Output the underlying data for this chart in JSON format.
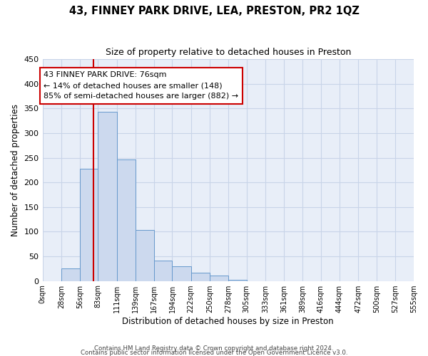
{
  "title": "43, FINNEY PARK DRIVE, LEA, PRESTON, PR2 1QZ",
  "subtitle": "Size of property relative to detached houses in Preston",
  "xlabel": "Distribution of detached houses by size in Preston",
  "ylabel": "Number of detached properties",
  "bar_values": [
    0,
    25,
    228,
    343,
    247,
    103,
    41,
    30,
    17,
    11,
    2,
    0,
    0,
    0,
    0,
    0,
    0,
    0,
    0,
    0
  ],
  "bin_edges": [
    0,
    28,
    56,
    83,
    111,
    139,
    167,
    194,
    222,
    250,
    278,
    305,
    333,
    361,
    389,
    416,
    444,
    472,
    500,
    527,
    555
  ],
  "tick_labels": [
    "0sqm",
    "28sqm",
    "56sqm",
    "83sqm",
    "111sqm",
    "139sqm",
    "167sqm",
    "194sqm",
    "222sqm",
    "250sqm",
    "278sqm",
    "305sqm",
    "333sqm",
    "361sqm",
    "389sqm",
    "416sqm",
    "444sqm",
    "472sqm",
    "500sqm",
    "527sqm",
    "555sqm"
  ],
  "bar_color": "#ccd9ee",
  "bar_edge_color": "#6699cc",
  "vline_x": 76,
  "vline_color": "#cc0000",
  "ylim": [
    0,
    450
  ],
  "yticks": [
    0,
    50,
    100,
    150,
    200,
    250,
    300,
    350,
    400,
    450
  ],
  "annotation_title": "43 FINNEY PARK DRIVE: 76sqm",
  "annotation_line1": "← 14% of detached houses are smaller (148)",
  "annotation_line2": "85% of semi-detached houses are larger (882) →",
  "annotation_box_color": "#ffffff",
  "annotation_box_edge": "#cc0000",
  "grid_color": "#c8d4e8",
  "background_color": "#e8eef8",
  "footer1": "Contains HM Land Registry data © Crown copyright and database right 2024.",
  "footer2": "Contains public sector information licensed under the Open Government Licence v3.0."
}
